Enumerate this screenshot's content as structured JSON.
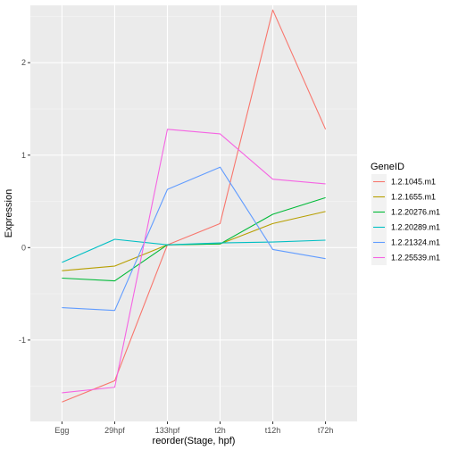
{
  "chart_data": {
    "type": "line",
    "xlabel": "reorder(Stage, hpf)",
    "ylabel": "Expression",
    "categories": [
      "Egg",
      "29hpf",
      "133hpf",
      "t2h",
      "t12h",
      "t72h"
    ],
    "ylim": [
      -1.88,
      2.62
    ],
    "yticks": [
      -1,
      0,
      1,
      2
    ],
    "grid": true,
    "legend_position": "right",
    "legend_title": "GeneID",
    "series": [
      {
        "name": "1.2.1045.m1",
        "color": "#F8766D",
        "values": [
          -1.67,
          -1.44,
          0.03,
          0.26,
          2.57,
          1.28
        ]
      },
      {
        "name": "1.2.1655.m1",
        "color": "#B79F00",
        "values": [
          -0.25,
          -0.2,
          0.03,
          0.04,
          0.26,
          0.39
        ]
      },
      {
        "name": "1.2.20276.m1",
        "color": "#00BA38",
        "values": [
          -0.33,
          -0.36,
          0.03,
          0.04,
          0.36,
          0.54
        ]
      },
      {
        "name": "1.2.20289.m1",
        "color": "#00BFC4",
        "values": [
          -0.16,
          0.09,
          0.03,
          0.05,
          0.06,
          0.08
        ]
      },
      {
        "name": "1.2.21324.m1",
        "color": "#619CFF",
        "values": [
          -0.65,
          -0.68,
          0.63,
          0.87,
          -0.02,
          -0.12
        ]
      },
      {
        "name": "1.2.25539.m1",
        "color": "#F564E3",
        "values": [
          -1.57,
          -1.51,
          1.28,
          1.23,
          0.74,
          0.69
        ]
      }
    ]
  }
}
